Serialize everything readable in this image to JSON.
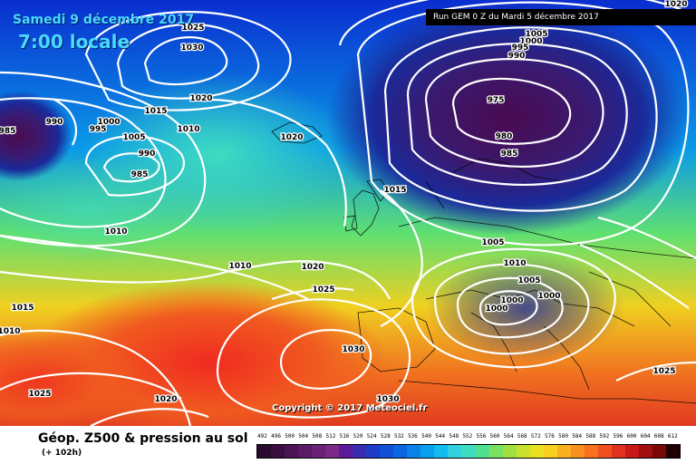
{
  "header": {
    "date": "Samedi 9 décembre 2017",
    "time": "7:00 locale",
    "run": "Run GEM 0 Z du Mardi 5 décembre 2017"
  },
  "footer": {
    "title": "Géop. Z500 & pression au sol",
    "subtitle": "(+ 102h)",
    "copyright": "Copyright © 2017 Meteociel.fr"
  },
  "legend": {
    "values": [
      "492",
      "496",
      "500",
      "504",
      "508",
      "512",
      "516",
      "520",
      "524",
      "528",
      "532",
      "536",
      "540",
      "544",
      "548",
      "552",
      "556",
      "560",
      "564",
      "568",
      "572",
      "576",
      "580",
      "584",
      "588",
      "592",
      "596",
      "600",
      "604",
      "608",
      "612"
    ],
    "colors": [
      "#2a0a2e",
      "#3a0f40",
      "#4a1552",
      "#5a1b64",
      "#6a2276",
      "#7a2988",
      "#5a1a9a",
      "#3b2bb0",
      "#1e3cc8",
      "#0f4fd8",
      "#0a66e0",
      "#0a82e8",
      "#0aa0f0",
      "#10bcf0",
      "#30d0e0",
      "#40dcc0",
      "#50e090",
      "#7ae060",
      "#a0e040",
      "#c8e030",
      "#e8e020",
      "#f8d020",
      "#f8b020",
      "#f89020",
      "#f87020",
      "#f05020",
      "#e03020",
      "#c81818",
      "#a01010",
      "#780808",
      "#200000"
    ]
  },
  "isobars": [
    {
      "text": "1025"
    },
    {
      "text": "1030"
    },
    {
      "text": "1020"
    },
    {
      "text": "1015"
    },
    {
      "text": "1010"
    },
    {
      "text": "990"
    },
    {
      "text": "1000"
    },
    {
      "text": "995"
    },
    {
      "text": "1005"
    },
    {
      "text": "990"
    },
    {
      "text": "985"
    },
    {
      "text": "985"
    },
    {
      "text": "1020"
    },
    {
      "text": "1015"
    },
    {
      "text": "1010"
    },
    {
      "text": "1010"
    },
    {
      "text": "1020"
    },
    {
      "text": "1025"
    },
    {
      "text": "1015"
    },
    {
      "text": "1010"
    },
    {
      "text": "1030"
    },
    {
      "text": "1025"
    },
    {
      "text": "1020"
    },
    {
      "text": "1030"
    },
    {
      "text": "1005"
    },
    {
      "text": "1000"
    },
    {
      "text": "995"
    },
    {
      "text": "990"
    },
    {
      "text": "975"
    },
    {
      "text": "980"
    },
    {
      "text": "985"
    },
    {
      "text": "1020"
    },
    {
      "text": "1005"
    },
    {
      "text": "1010"
    },
    {
      "text": "1005"
    },
    {
      "text": "1000"
    },
    {
      "text": "1000"
    },
    {
      "text": "1000"
    },
    {
      "text": "1025"
    }
  ]
}
